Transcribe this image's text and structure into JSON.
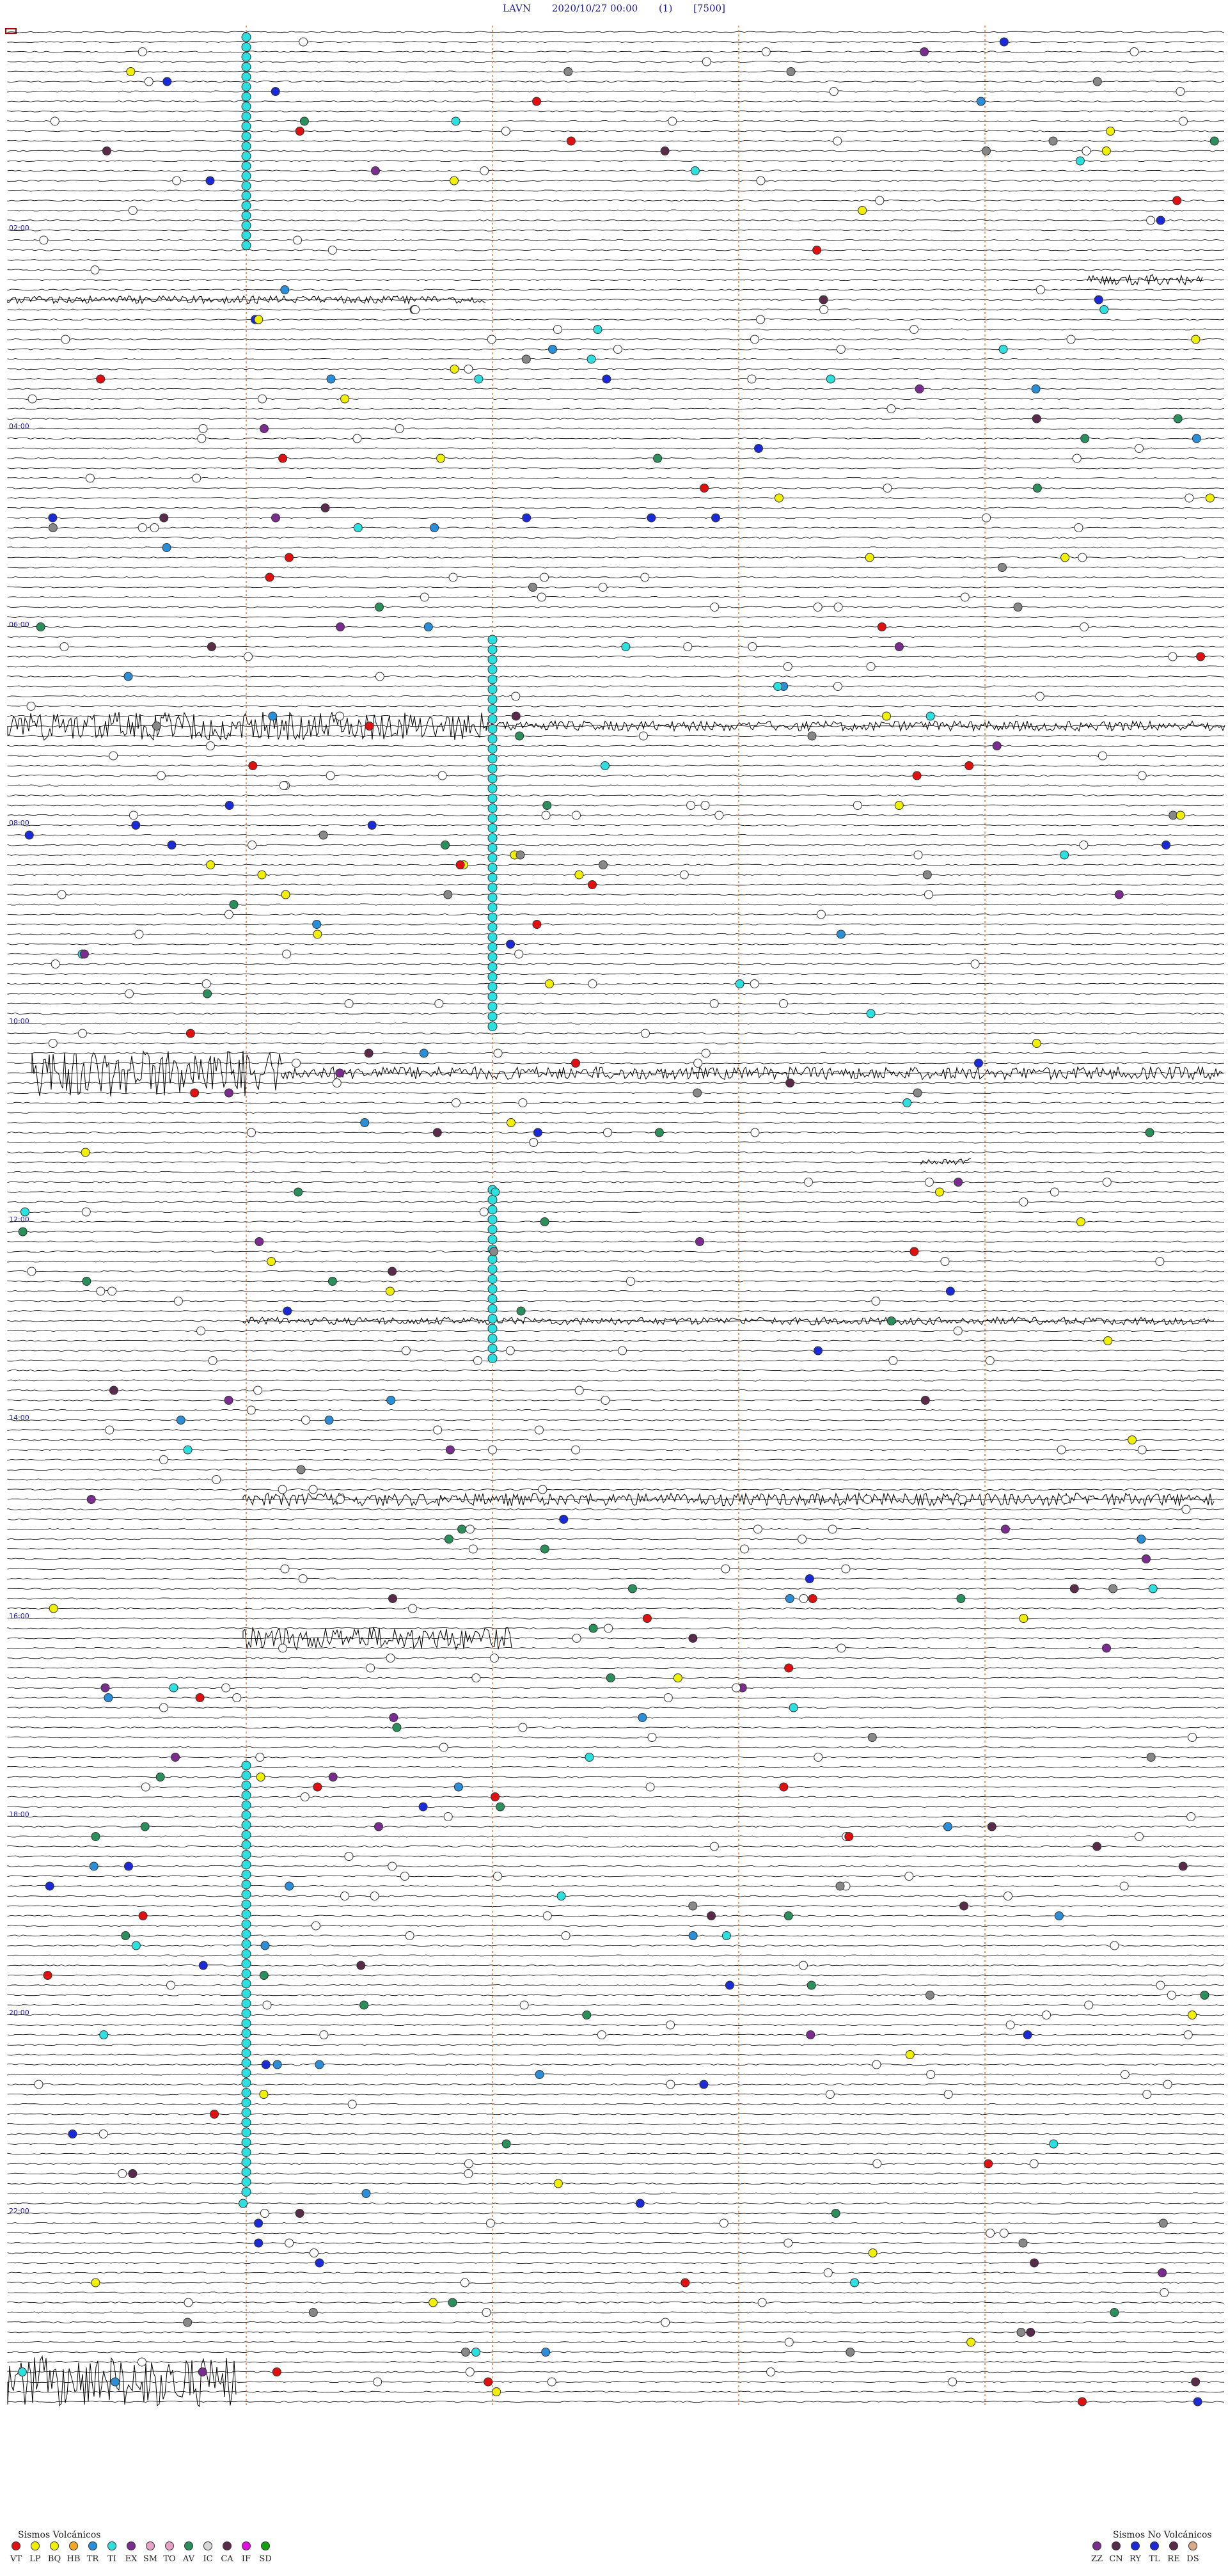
{
  "header": {
    "station": "LAVN",
    "datetime": "2020/10/27 00:00",
    "channel": "(1)",
    "scale": "[7500]"
  },
  "drum": {
    "hour_labels": [
      "02:00",
      "04:00",
      "06:00",
      "08:00",
      "10:00",
      "12:00",
      "14:00",
      "16:00",
      "18:00",
      "20:00",
      "22:00"
    ],
    "trace_color": "#000000",
    "minute_marker_color": "#e07a3c"
  },
  "legend_volcanic": {
    "title": "Sismos Volcánicos",
    "items": [
      {
        "code": "VT",
        "color": "#e01010"
      },
      {
        "code": "LP",
        "color": "#f0f000"
      },
      {
        "code": "BQ",
        "color": "#f0f000"
      },
      {
        "code": "HB",
        "color": "#f5a623"
      },
      {
        "code": "TR",
        "color": "#2a8fd8"
      },
      {
        "code": "TI",
        "color": "#2de0e0"
      },
      {
        "code": "EX",
        "color": "#7a2c8f"
      },
      {
        "code": "SM",
        "color": "#e8a0c8"
      },
      {
        "code": "TO",
        "color": "#e8a0c8"
      },
      {
        "code": "AV",
        "color": "#2a8f5a"
      },
      {
        "code": "IC",
        "color": "#d8d8d8"
      },
      {
        "code": "CA",
        "color": "#5a2a4a"
      },
      {
        "code": "IF",
        "color": "#e010e0"
      },
      {
        "code": "SD",
        "color": "#10a010"
      }
    ]
  },
  "legend_nonvolcanic": {
    "title": "Sismos No Volcánicos",
    "items": [
      {
        "code": "ZZ",
        "color": "#7a2c8f"
      },
      {
        "code": "CN",
        "color": "#5a2a4a"
      },
      {
        "code": "RY",
        "color": "#1a2ad8"
      },
      {
        "code": "TL",
        "color": "#1a2ad8"
      },
      {
        "code": "RE",
        "color": "#5a2a4a"
      },
      {
        "code": "DS",
        "color": "#d8a888"
      }
    ]
  }
}
